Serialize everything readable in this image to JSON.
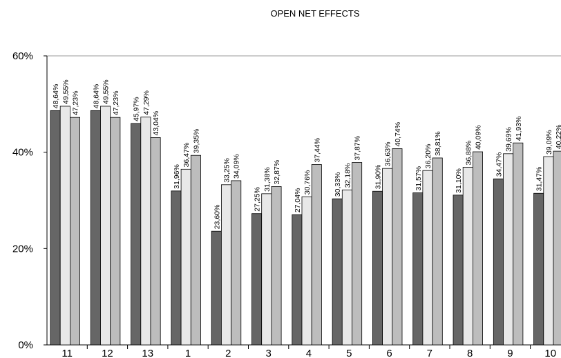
{
  "chart_data": {
    "type": "bar",
    "title": "OPEN NET EFFECTS",
    "xlabel": "",
    "ylabel": "",
    "ylim": [
      0,
      60
    ],
    "yticks": [
      0,
      20,
      40,
      60
    ],
    "ytick_labels": [
      "0%",
      "20%",
      "40%",
      "60%"
    ],
    "grid": false,
    "legend": "none",
    "categories": [
      "11",
      "12",
      "13",
      "1",
      "2",
      "3",
      "4",
      "5",
      "6",
      "7",
      "8",
      "9",
      "10"
    ],
    "series": [
      {
        "color": "#666666",
        "values": [
          48.64,
          48.64,
          45.97,
          31.96,
          23.6,
          27.25,
          27.04,
          30.33,
          31.9,
          31.57,
          31.1,
          34.47,
          31.47
        ],
        "labels": [
          "48,64%",
          "48,64%",
          "45,97%",
          "31,96%",
          "23,60%",
          "27,25%",
          "27,04%",
          "30,33%",
          "31,90%",
          "31,57%",
          "31,10%",
          "34,47%",
          "31,47%"
        ]
      },
      {
        "color": "#e8e8e8",
        "values": [
          49.55,
          49.55,
          47.29,
          36.47,
          33.25,
          31.38,
          30.76,
          32.18,
          36.63,
          36.2,
          36.88,
          39.69,
          39.09
        ],
        "labels": [
          "49,55%",
          "49,55%",
          "47,29%",
          "36,47%",
          "33,25%",
          "31,38%",
          "30,76%",
          "32,18%",
          "36,63%",
          "36,20%",
          "36,88%",
          "39,69%",
          "39,09%"
        ]
      },
      {
        "color": "#bdbdbd",
        "values": [
          47.23,
          47.23,
          43.04,
          39.35,
          34.09,
          32.87,
          37.44,
          37.87,
          40.74,
          38.81,
          40.09,
          41.93,
          40.22
        ],
        "labels": [
          "47,23%",
          "47,23%",
          "43,04%",
          "39,35%",
          "34,09%",
          "32,87%",
          "37,44%",
          "37,87%",
          "40,74%",
          "38,81%",
          "40,09%",
          "41,93%",
          "40,22%"
        ]
      }
    ]
  }
}
